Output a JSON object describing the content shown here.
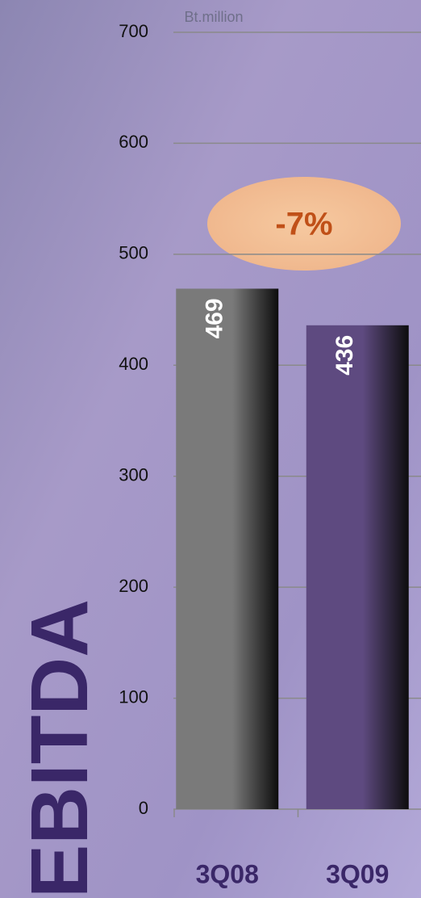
{
  "chart_data": {
    "type": "bar",
    "title": "EBITDA",
    "y_axis_label": "Bt.million",
    "categories": [
      "3Q08",
      "3Q09"
    ],
    "values": [
      469,
      436
    ],
    "colors": [
      "#7a7a7a",
      "#5e4a80"
    ],
    "annotation": "-7%",
    "ylim": [
      0,
      700
    ],
    "yticks": [
      0,
      100,
      200,
      300,
      400,
      500,
      600,
      700
    ],
    "grid": true
  }
}
